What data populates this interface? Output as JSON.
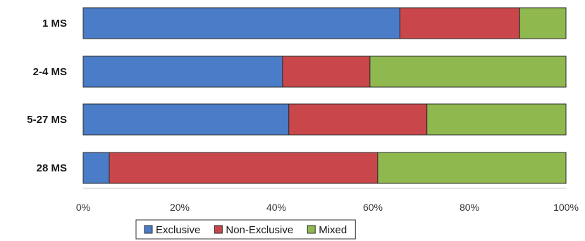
{
  "chart_data": {
    "type": "bar",
    "orientation": "horizontal",
    "stacked": true,
    "percent": true,
    "categories": [
      "1 MS",
      "2-4 MS",
      "5-27 MS",
      "28 MS"
    ],
    "series": [
      {
        "name": "Exclusive",
        "color": "#4a7cc7",
        "values": [
          65.6,
          41.3,
          42.6,
          5.4
        ]
      },
      {
        "name": "Non-Exclusive",
        "color": "#c9474a",
        "values": [
          24.8,
          18.1,
          28.6,
          55.6
        ]
      },
      {
        "name": "Mixed",
        "color": "#8fb84f",
        "values": [
          9.6,
          40.6,
          28.8,
          39.0
        ]
      }
    ],
    "x_ticks": [
      "0%",
      "20%",
      "40%",
      "60%",
      "80%",
      "100%"
    ],
    "xlim": [
      0,
      100
    ],
    "grid": false,
    "legend_position": "bottom"
  }
}
